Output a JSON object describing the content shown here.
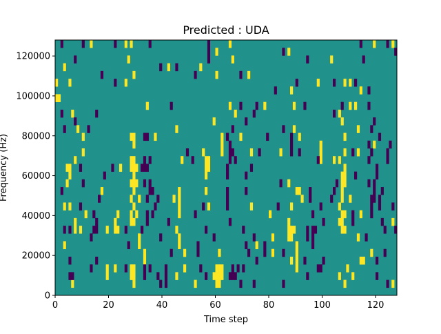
{
  "chart_data": {
    "type": "heatmap",
    "title": "Predicted : UDA",
    "xlabel": "Time step",
    "ylabel": "Frequency (Hz)",
    "xlim": [
      0,
      128
    ],
    "ylim": [
      0,
      128000
    ],
    "xticks": [
      0,
      20,
      40,
      60,
      80,
      100,
      120
    ],
    "yticks": [
      0,
      20000,
      40000,
      60000,
      80000,
      100000,
      120000
    ],
    "xtick_labels": [
      "0",
      "20",
      "40",
      "60",
      "80",
      "100",
      "120"
    ],
    "ytick_labels": [
      "0",
      "20000",
      "40000",
      "60000",
      "80000",
      "100000",
      "120000"
    ],
    "grid": false,
    "n_time_steps": 128,
    "n_freq_bins": 33,
    "cell_format": "[time_step, freq_bin_from_top, n_steps, n_bins]",
    "colors": {
      "background": "#21918c",
      "high": "#fde725",
      "low": "#440154"
    },
    "background_value": 1,
    "high_value": 2,
    "low_value": 0,
    "high_cells": [
      [
        13,
        0
      ],
      [
        26,
        0
      ],
      [
        28,
        0
      ],
      [
        60,
        1
      ],
      [
        27,
        2
      ],
      [
        3,
        3
      ],
      [
        42,
        3
      ],
      [
        54,
        3
      ],
      [
        29,
        4
      ],
      [
        60,
        4
      ],
      [
        0,
        5
      ],
      [
        5,
        5
      ],
      [
        26,
        5
      ],
      [
        0,
        7,
        2,
        1
      ],
      [
        34,
        8
      ],
      [
        6,
        9
      ],
      [
        59,
        10
      ],
      [
        8,
        11
      ],
      [
        45,
        11
      ],
      [
        10,
        12
      ],
      [
        28,
        12,
        2,
        1
      ],
      [
        29,
        13
      ],
      [
        37,
        12
      ],
      [
        62,
        12,
        1,
        3
      ],
      [
        10,
        14
      ],
      [
        55,
        14
      ],
      [
        7,
        15
      ],
      [
        28,
        15,
        2,
        2
      ],
      [
        47,
        15
      ],
      [
        56,
        15,
        2,
        2
      ],
      [
        56,
        17
      ],
      [
        4,
        16,
        2,
        1
      ],
      [
        24,
        16
      ],
      [
        30,
        16
      ],
      [
        65,
        0
      ],
      [
        119,
        0
      ],
      [
        126,
        0
      ],
      [
        87,
        1
      ],
      [
        66,
        2
      ],
      [
        103,
        2
      ],
      [
        72,
        4
      ],
      [
        98,
        5
      ],
      [
        108,
        5
      ],
      [
        110,
        5
      ],
      [
        88,
        6
      ],
      [
        114,
        6
      ],
      [
        65,
        8
      ],
      [
        78,
        8
      ],
      [
        89,
        8
      ],
      [
        110,
        8
      ],
      [
        112,
        8
      ],
      [
        67,
        9
      ],
      [
        106,
        9
      ],
      [
        107,
        10
      ],
      [
        89,
        11
      ],
      [
        113,
        11
      ],
      [
        69,
        12
      ],
      [
        91,
        12
      ],
      [
        108,
        12
      ],
      [
        119,
        13
      ],
      [
        99,
        13,
        1,
        3
      ],
      [
        73,
        14
      ],
      [
        84,
        14
      ],
      [
        108,
        14
      ],
      [
        113,
        14
      ],
      [
        104,
        15
      ],
      [
        106,
        15
      ],
      [
        108,
        16
      ],
      [
        5,
        17
      ],
      [
        29,
        17
      ],
      [
        4,
        18
      ],
      [
        28,
        18,
        3,
        1
      ],
      [
        17,
        19
      ],
      [
        29,
        19
      ],
      [
        46,
        19,
        1,
        4
      ],
      [
        56,
        19
      ],
      [
        28,
        20
      ],
      [
        31,
        20
      ],
      [
        44,
        20
      ],
      [
        3,
        21
      ],
      [
        5,
        21
      ],
      [
        29,
        21
      ],
      [
        57,
        21
      ],
      [
        11,
        22
      ],
      [
        23,
        22
      ],
      [
        28,
        22
      ],
      [
        30,
        22
      ],
      [
        7,
        23
      ],
      [
        22,
        23
      ],
      [
        28,
        23,
        2,
        1
      ],
      [
        7,
        24
      ],
      [
        9,
        24
      ],
      [
        19,
        24
      ],
      [
        22,
        24,
        2,
        1
      ],
      [
        45,
        24
      ],
      [
        31,
        25,
        1,
        2
      ],
      [
        46,
        25,
        1,
        2
      ],
      [
        3,
        26
      ],
      [
        33,
        27,
        1,
        2
      ],
      [
        48,
        27
      ],
      [
        61,
        27
      ],
      [
        19,
        29,
        1,
        2
      ],
      [
        22,
        29
      ],
      [
        28,
        29,
        2,
        2
      ],
      [
        48,
        29
      ],
      [
        60,
        29,
        3,
        1
      ],
      [
        45,
        30
      ],
      [
        59,
        30,
        4,
        1
      ],
      [
        6,
        31
      ],
      [
        29,
        31
      ],
      [
        52,
        31
      ],
      [
        60,
        31,
        2,
        1
      ],
      [
        107,
        17,
        2,
        2
      ],
      [
        87,
        18
      ],
      [
        90,
        19,
        2,
        1
      ],
      [
        107,
        19,
        1,
        2
      ],
      [
        92,
        20
      ],
      [
        110,
        20
      ],
      [
        73,
        21
      ],
      [
        88,
        21
      ],
      [
        106,
        21
      ],
      [
        80,
        22
      ],
      [
        107,
        22,
        2,
        1
      ],
      [
        114,
        22
      ],
      [
        87,
        23,
        1,
        3
      ],
      [
        106,
        23,
        2,
        1
      ],
      [
        126,
        23
      ],
      [
        88,
        24,
        2,
        1
      ],
      [
        107,
        24,
        2,
        1
      ],
      [
        88,
        25
      ],
      [
        81,
        25
      ],
      [
        113,
        25
      ],
      [
        75,
        26
      ],
      [
        90,
        26,
        1,
        4
      ],
      [
        81,
        27
      ],
      [
        118,
        27
      ],
      [
        88,
        28
      ],
      [
        114,
        28,
        2,
        1
      ],
      [
        109,
        29
      ],
      [
        106,
        30
      ],
      [
        111,
        30
      ],
      [
        108,
        31
      ],
      [
        126,
        31
      ]
    ],
    "low_cells": [
      [
        2,
        0
      ],
      [
        10,
        0
      ],
      [
        22,
        0
      ],
      [
        35,
        0
      ],
      [
        57,
        0,
        1,
        3
      ],
      [
        7,
        2
      ],
      [
        39,
        3
      ],
      [
        45,
        3
      ],
      [
        17,
        4
      ],
      [
        52,
        4
      ],
      [
        22,
        5
      ],
      [
        43,
        8
      ],
      [
        2,
        9
      ],
      [
        15,
        9
      ],
      [
        7,
        10
      ],
      [
        3,
        11
      ],
      [
        12,
        11
      ],
      [
        33,
        12,
        2,
        1
      ],
      [
        49,
        14
      ],
      [
        33,
        15
      ],
      [
        35,
        15
      ],
      [
        51,
        15
      ],
      [
        9,
        16
      ],
      [
        21,
        16
      ],
      [
        32,
        16,
        3,
        1
      ],
      [
        114,
        0
      ],
      [
        124,
        0
      ],
      [
        85,
        1
      ],
      [
        127,
        1
      ],
      [
        94,
        2
      ],
      [
        115,
        2
      ],
      [
        69,
        4
      ],
      [
        90,
        5
      ],
      [
        104,
        5
      ],
      [
        112,
        5
      ],
      [
        82,
        6
      ],
      [
        117,
        6
      ],
      [
        69,
        8
      ],
      [
        75,
        8
      ],
      [
        93,
        8
      ],
      [
        107,
        8
      ],
      [
        117,
        8
      ],
      [
        74,
        9
      ],
      [
        104,
        9
      ],
      [
        71,
        10
      ],
      [
        119,
        10
      ],
      [
        66,
        11
      ],
      [
        85,
        11
      ],
      [
        118,
        11
      ],
      [
        64,
        12
      ],
      [
        79,
        12
      ],
      [
        88,
        12,
        1,
        3
      ],
      [
        121,
        12
      ],
      [
        65,
        13,
        1,
        3
      ],
      [
        117,
        13
      ],
      [
        125,
        13
      ],
      [
        66,
        14
      ],
      [
        76,
        14
      ],
      [
        91,
        14
      ],
      [
        111,
        14
      ],
      [
        118,
        14
      ],
      [
        124,
        14,
        1,
        2
      ],
      [
        67,
        15
      ],
      [
        98,
        15
      ],
      [
        117,
        15
      ],
      [
        64,
        16
      ],
      [
        73,
        16
      ],
      [
        120,
        16,
        1,
        2
      ],
      [
        18,
        17
      ],
      [
        10,
        18
      ],
      [
        33,
        18
      ],
      [
        35,
        18
      ],
      [
        2,
        19
      ],
      [
        35,
        19,
        2,
        1
      ],
      [
        16,
        20
      ],
      [
        34,
        20
      ],
      [
        38,
        20
      ],
      [
        9,
        21
      ],
      [
        37,
        21
      ],
      [
        55,
        21
      ],
      [
        14,
        22
      ],
      [
        34,
        22,
        1,
        2
      ],
      [
        36,
        22
      ],
      [
        52,
        22
      ],
      [
        15,
        23
      ],
      [
        42,
        23
      ],
      [
        3,
        24
      ],
      [
        5,
        24
      ],
      [
        14,
        24,
        2,
        1
      ],
      [
        26,
        24
      ],
      [
        32,
        24
      ],
      [
        56,
        24
      ],
      [
        13,
        25
      ],
      [
        39,
        25
      ],
      [
        59,
        25
      ],
      [
        27,
        26
      ],
      [
        53,
        26,
        1,
        2
      ],
      [
        43,
        27
      ],
      [
        5,
        28
      ],
      [
        15,
        28
      ],
      [
        13,
        29
      ],
      [
        26,
        29
      ],
      [
        33,
        29,
        1,
        2
      ],
      [
        35,
        29
      ],
      [
        41,
        29,
        1,
        3
      ],
      [
        54,
        29
      ],
      [
        5,
        30,
        2,
        1
      ],
      [
        38,
        30
      ],
      [
        56,
        30
      ],
      [
        39,
        31
      ],
      [
        64,
        17
      ],
      [
        71,
        17
      ],
      [
        112,
        17
      ],
      [
        84,
        18
      ],
      [
        105,
        18
      ],
      [
        117,
        18
      ],
      [
        119,
        18,
        1,
        3
      ],
      [
        64,
        19,
        1,
        3
      ],
      [
        71,
        19
      ],
      [
        95,
        19,
        1,
        2
      ],
      [
        104,
        19
      ],
      [
        122,
        19
      ],
      [
        103,
        20
      ],
      [
        118,
        20,
        1,
        3
      ],
      [
        121,
        20,
        1,
        2
      ],
      [
        83,
        21
      ],
      [
        99,
        21
      ],
      [
        126,
        21
      ],
      [
        96,
        22
      ],
      [
        111,
        22,
        1,
        2
      ],
      [
        65,
        23
      ],
      [
        100,
        23
      ],
      [
        122,
        23
      ],
      [
        70,
        24
      ],
      [
        94,
        24,
        1,
        2
      ],
      [
        96,
        24,
        2,
        1
      ],
      [
        123,
        24
      ],
      [
        127,
        24
      ],
      [
        74,
        25
      ],
      [
        96,
        25,
        1,
        2
      ],
      [
        116,
        25
      ],
      [
        71,
        26
      ],
      [
        78,
        26,
        1,
        2
      ],
      [
        72,
        27
      ],
      [
        85,
        27
      ],
      [
        123,
        27
      ],
      [
        75,
        28
      ],
      [
        93,
        28
      ],
      [
        100,
        28
      ],
      [
        120,
        28
      ],
      [
        66,
        29
      ],
      [
        68,
        29
      ],
      [
        70,
        29
      ],
      [
        98,
        29
      ],
      [
        99,
        29
      ],
      [
        65,
        30,
        3,
        1
      ],
      [
        94,
        30
      ],
      [
        120,
        30
      ],
      [
        69,
        31
      ],
      [
        74,
        31
      ],
      [
        85,
        31
      ],
      [
        124,
        31
      ]
    ]
  }
}
